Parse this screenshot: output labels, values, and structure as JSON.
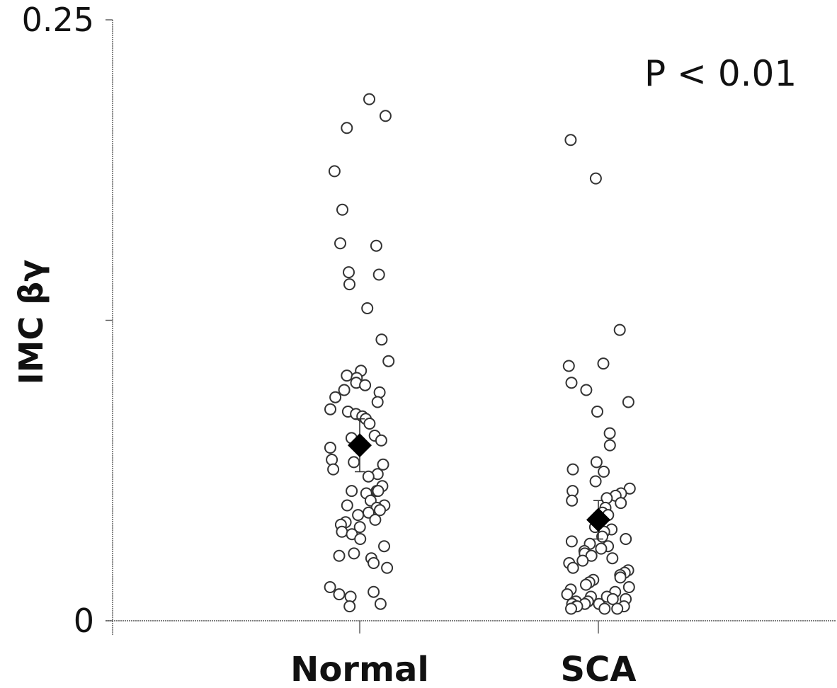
{
  "chart_data": {
    "type": "scatter",
    "title": "",
    "xlabel": "",
    "ylabel": "IMC βγ",
    "ylim": [
      0,
      0.25
    ],
    "yticks": [
      0,
      0.125,
      0.25
    ],
    "ytick_labels": [
      "0",
      "",
      "0.25"
    ],
    "categories": [
      "Normal",
      "SCA"
    ],
    "annotation": "P < 0.01",
    "grid": false,
    "series": [
      {
        "values": [
          0.217,
          0.21,
          0.205,
          0.187,
          0.171,
          0.156,
          0.157,
          0.145,
          0.144,
          0.14,
          0.13,
          0.117,
          0.108,
          0.104,
          0.102,
          0.101,
          0.099,
          0.098,
          0.096,
          0.095,
          0.093,
          0.091,
          0.088,
          0.087,
          0.086,
          0.085,
          0.084,
          0.082,
          0.077,
          0.076,
          0.075,
          0.072,
          0.067,
          0.066,
          0.065,
          0.063,
          0.061,
          0.06,
          0.056,
          0.054,
          0.054,
          0.054,
          0.053,
          0.05,
          0.048,
          0.048,
          0.047,
          0.046,
          0.045,
          0.044,
          0.042,
          0.041,
          0.04,
          0.039,
          0.037,
          0.036,
          0.034,
          0.031,
          0.028,
          0.027,
          0.026,
          0.024,
          0.022,
          0.014,
          0.012,
          0.011,
          0.01,
          0.007,
          0.006
        ],
        "mean": 0.073,
        "sem": 0.011
      },
      {
        "values": [
          0.2,
          0.184,
          0.121,
          0.107,
          0.106,
          0.099,
          0.096,
          0.091,
          0.087,
          0.078,
          0.073,
          0.066,
          0.063,
          0.062,
          0.058,
          0.055,
          0.054,
          0.053,
          0.052,
          0.051,
          0.05,
          0.049,
          0.047,
          0.045,
          0.044,
          0.039,
          0.038,
          0.037,
          0.035,
          0.034,
          0.033,
          0.032,
          0.031,
          0.03,
          0.029,
          0.028,
          0.027,
          0.026,
          0.025,
          0.024,
          0.022,
          0.021,
          0.02,
          0.019,
          0.018,
          0.017,
          0.016,
          0.015,
          0.014,
          0.013,
          0.012,
          0.011,
          0.01,
          0.01,
          0.009,
          0.009,
          0.008,
          0.008,
          0.007,
          0.007,
          0.007,
          0.006,
          0.006,
          0.006,
          0.005,
          0.005,
          0.005
        ],
        "mean": 0.042,
        "sem": 0.008
      }
    ]
  },
  "colors": {
    "axis": "#555555",
    "marker_edge": "#333333",
    "mean_marker": "#000000",
    "background": "#ffffff"
  }
}
